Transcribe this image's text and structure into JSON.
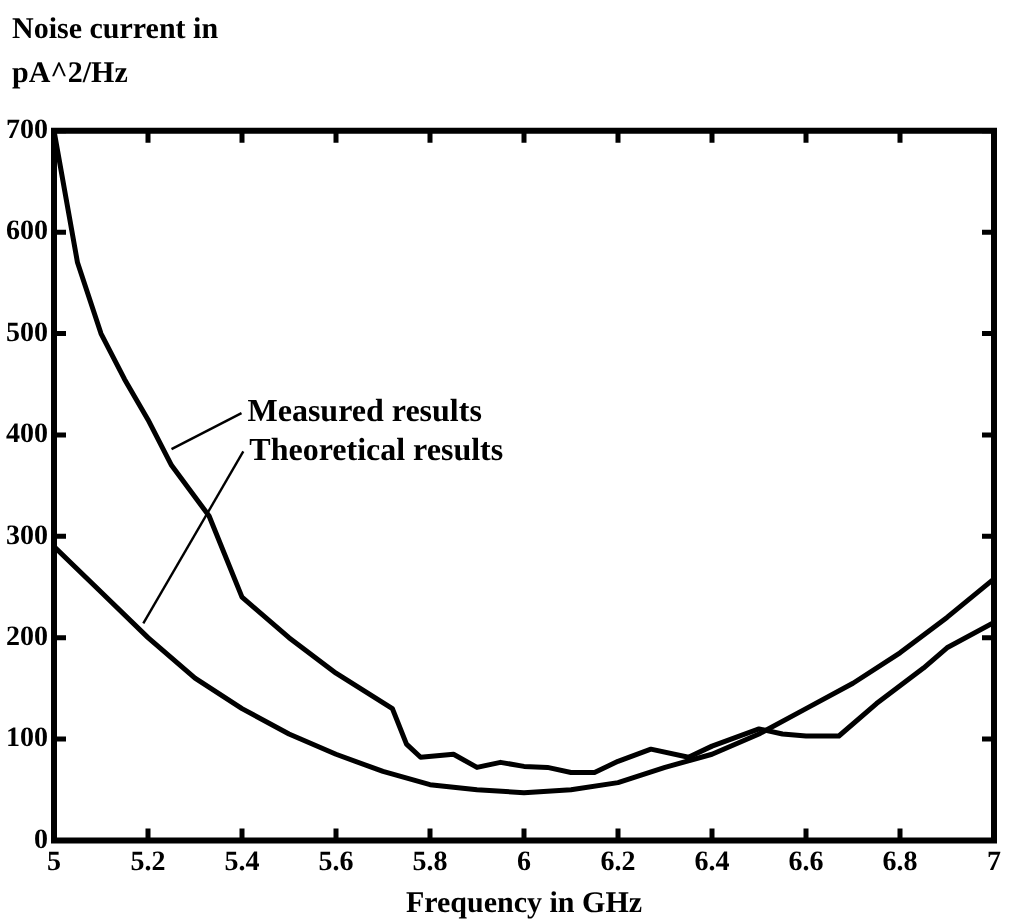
{
  "chart_data": {
    "type": "line",
    "ylabel": "Noise current in pA^2/Hz",
    "xlabel": "Frequency in GHz",
    "xlim": [
      5,
      7
    ],
    "xticks": [
      5,
      5.2,
      5.4,
      5.6,
      5.8,
      6,
      6.2,
      6.4,
      6.6,
      6.8,
      7
    ],
    "ylim": [
      0,
      700
    ],
    "yticks": [
      0,
      100,
      200,
      300,
      400,
      500,
      600,
      700
    ],
    "grid": false,
    "legend": false,
    "marker": "none",
    "line_style": "solid",
    "series": [
      {
        "color": "#000000",
        "x": [
          5,
          5.05,
          5.1,
          5.15,
          5.2,
          5.25,
          5.33,
          5.4,
          5.5,
          5.6,
          5.72,
          5.75,
          5.78,
          5.85,
          5.9,
          5.95,
          6,
          6.05,
          6.1,
          6.15,
          6.2,
          6.27,
          6.35,
          6.4,
          6.5,
          6.55,
          6.6,
          6.67,
          6.75,
          6.85,
          6.9,
          7
        ],
        "values": [
          700,
          570,
          500,
          455,
          415,
          370,
          320,
          240,
          200,
          165,
          130,
          95,
          82,
          85,
          72,
          77,
          73,
          72,
          67,
          67,
          78,
          90,
          82,
          93,
          110,
          105,
          103,
          103,
          135,
          170,
          190,
          215
        ]
      },
      {
        "color": "#000000",
        "x": [
          5,
          5.1,
          5.2,
          5.3,
          5.4,
          5.5,
          5.6,
          5.7,
          5.8,
          5.9,
          6,
          6.1,
          6.2,
          6.3,
          6.4,
          6.5,
          6.6,
          6.7,
          6.8,
          6.9,
          7
        ],
        "values": [
          290,
          245,
          200,
          160,
          130,
          105,
          85,
          68,
          55,
          50,
          47,
          50,
          57,
          72,
          85,
          105,
          130,
          155,
          185,
          220,
          258
        ]
      }
    ],
    "annotations": [
      {
        "text": "Measured results",
        "x": 5.25,
        "y": 386
      },
      {
        "text": "Theoretical results",
        "x": 5.19,
        "y": 214
      }
    ]
  }
}
